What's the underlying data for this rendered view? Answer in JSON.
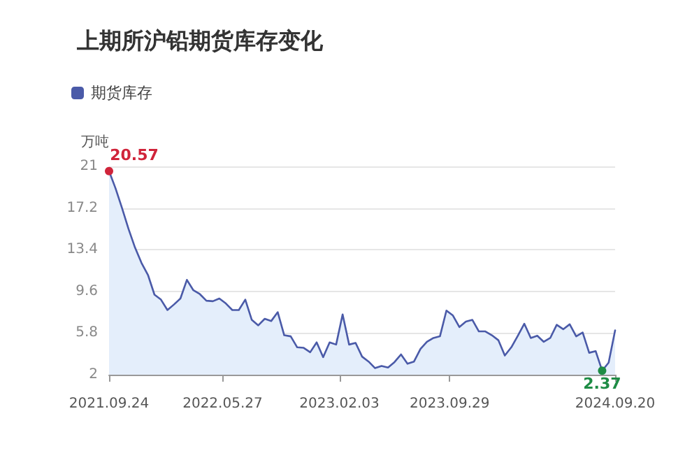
{
  "chart_data": {
    "type": "area",
    "title": "上期所沪铅期货库存变化",
    "ylabel": "万吨",
    "x": [
      "2021-09-24",
      "2021-10-08",
      "2021-10-22",
      "2021-11-05",
      "2021-11-19",
      "2021-12-03",
      "2021-12-17",
      "2021-12-31",
      "2022-01-14",
      "2022-01-28",
      "2022-02-11",
      "2022-02-25",
      "2022-03-11",
      "2022-03-25",
      "2022-04-08",
      "2022-04-22",
      "2022-05-06",
      "2022-05-20",
      "2022-06-03",
      "2022-06-17",
      "2022-07-01",
      "2022-07-15",
      "2022-07-29",
      "2022-08-12",
      "2022-08-26",
      "2022-09-09",
      "2022-09-23",
      "2022-10-07",
      "2022-10-21",
      "2022-11-04",
      "2022-11-18",
      "2022-12-02",
      "2022-12-16",
      "2022-12-30",
      "2023-01-13",
      "2023-01-27",
      "2023-02-10",
      "2023-02-24",
      "2023-03-10",
      "2023-03-24",
      "2023-04-07",
      "2023-04-21",
      "2023-05-05",
      "2023-05-19",
      "2023-06-02",
      "2023-06-16",
      "2023-06-30",
      "2023-07-14",
      "2023-07-28",
      "2023-08-11",
      "2023-08-25",
      "2023-09-08",
      "2023-09-22",
      "2023-10-06",
      "2023-10-20",
      "2023-11-03",
      "2023-11-17",
      "2023-12-01",
      "2023-12-15",
      "2023-12-29",
      "2024-01-12",
      "2024-01-26",
      "2024-02-09",
      "2024-02-23",
      "2024-03-08",
      "2024-03-22",
      "2024-04-05",
      "2024-04-19",
      "2024-05-03",
      "2024-05-17",
      "2024-05-31",
      "2024-06-14",
      "2024-06-28",
      "2024-07-12",
      "2024-07-26",
      "2024-08-09",
      "2024-08-23",
      "2024-09-06",
      "2024-09-20"
    ],
    "series": [
      {
        "name": "期货库存",
        "color": "#4a5aa8",
        "values": [
          20.57,
          19,
          17.2,
          15.3,
          13.6,
          12.2,
          11.1,
          9.3,
          8.85,
          7.9,
          8.4,
          8.95,
          10.65,
          9.7,
          9.35,
          8.75,
          8.7,
          8.95,
          8.5,
          7.9,
          7.9,
          8.85,
          7,
          6.5,
          7.1,
          6.9,
          7.7,
          5.6,
          5.5,
          4.5,
          4.45,
          4.05,
          4.95,
          3.6,
          4.95,
          4.75,
          7.5,
          4.75,
          4.9,
          3.65,
          3.2,
          2.6,
          2.8,
          2.65,
          3.15,
          3.85,
          3,
          3.2,
          4.35,
          5,
          5.35,
          5.5,
          7.85,
          7.4,
          6.35,
          6.85,
          7,
          5.95,
          5.95,
          5.6,
          5.15,
          3.75,
          4.5,
          5.55,
          6.65,
          5.35,
          5.55,
          5,
          5.35,
          6.55,
          6.15,
          6.6,
          5.5,
          5.85,
          4,
          4.15,
          2.37,
          3.1,
          6.05
        ]
      }
    ],
    "annotations": [
      {
        "text": "20.57",
        "x": "2021-09-24",
        "y": 20.57
      },
      {
        "text": "2.37",
        "x": "2024-08-23",
        "y": 2.37
      }
    ],
    "xlim": [
      "2021-09-24",
      "2024-09-20"
    ],
    "xticks": [
      {
        "value": "2021-09-24",
        "label": "2021.09.24"
      },
      {
        "value": "2022-05-27",
        "label": "2022.05.27"
      },
      {
        "value": "2023-02-03",
        "label": "2023.02.03"
      },
      {
        "value": "2023-09-29",
        "label": "2023.09.29"
      },
      {
        "value": "2024-09-20",
        "label": "2024.09.20"
      }
    ],
    "ylim": [
      2,
      21
    ],
    "yticks": [
      2,
      5.8,
      9.6,
      13.4,
      17.2,
      21
    ],
    "grid": "y",
    "legend": "top left",
    "marker": "none",
    "line_style": "solid"
  }
}
